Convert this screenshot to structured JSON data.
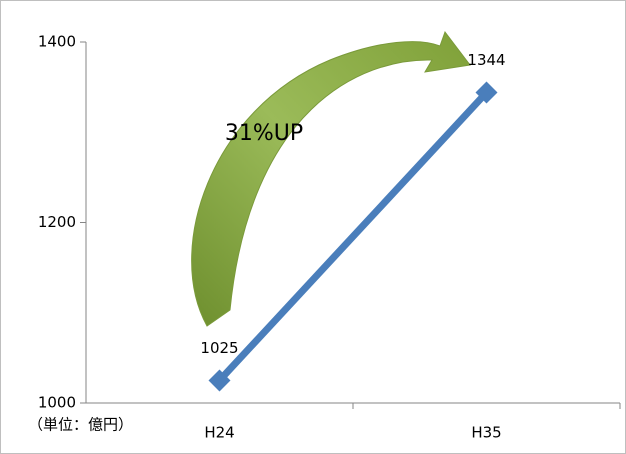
{
  "chart_data": {
    "type": "line",
    "categories": [
      "H24",
      "H35"
    ],
    "values": [
      1025,
      1344
    ],
    "color": "#4a7ebb",
    "ylim": [
      1000,
      1400
    ],
    "yticks": [
      1000,
      1200,
      1400
    ],
    "annotation": "31%UP",
    "unit_label": "（単位：億円）"
  }
}
